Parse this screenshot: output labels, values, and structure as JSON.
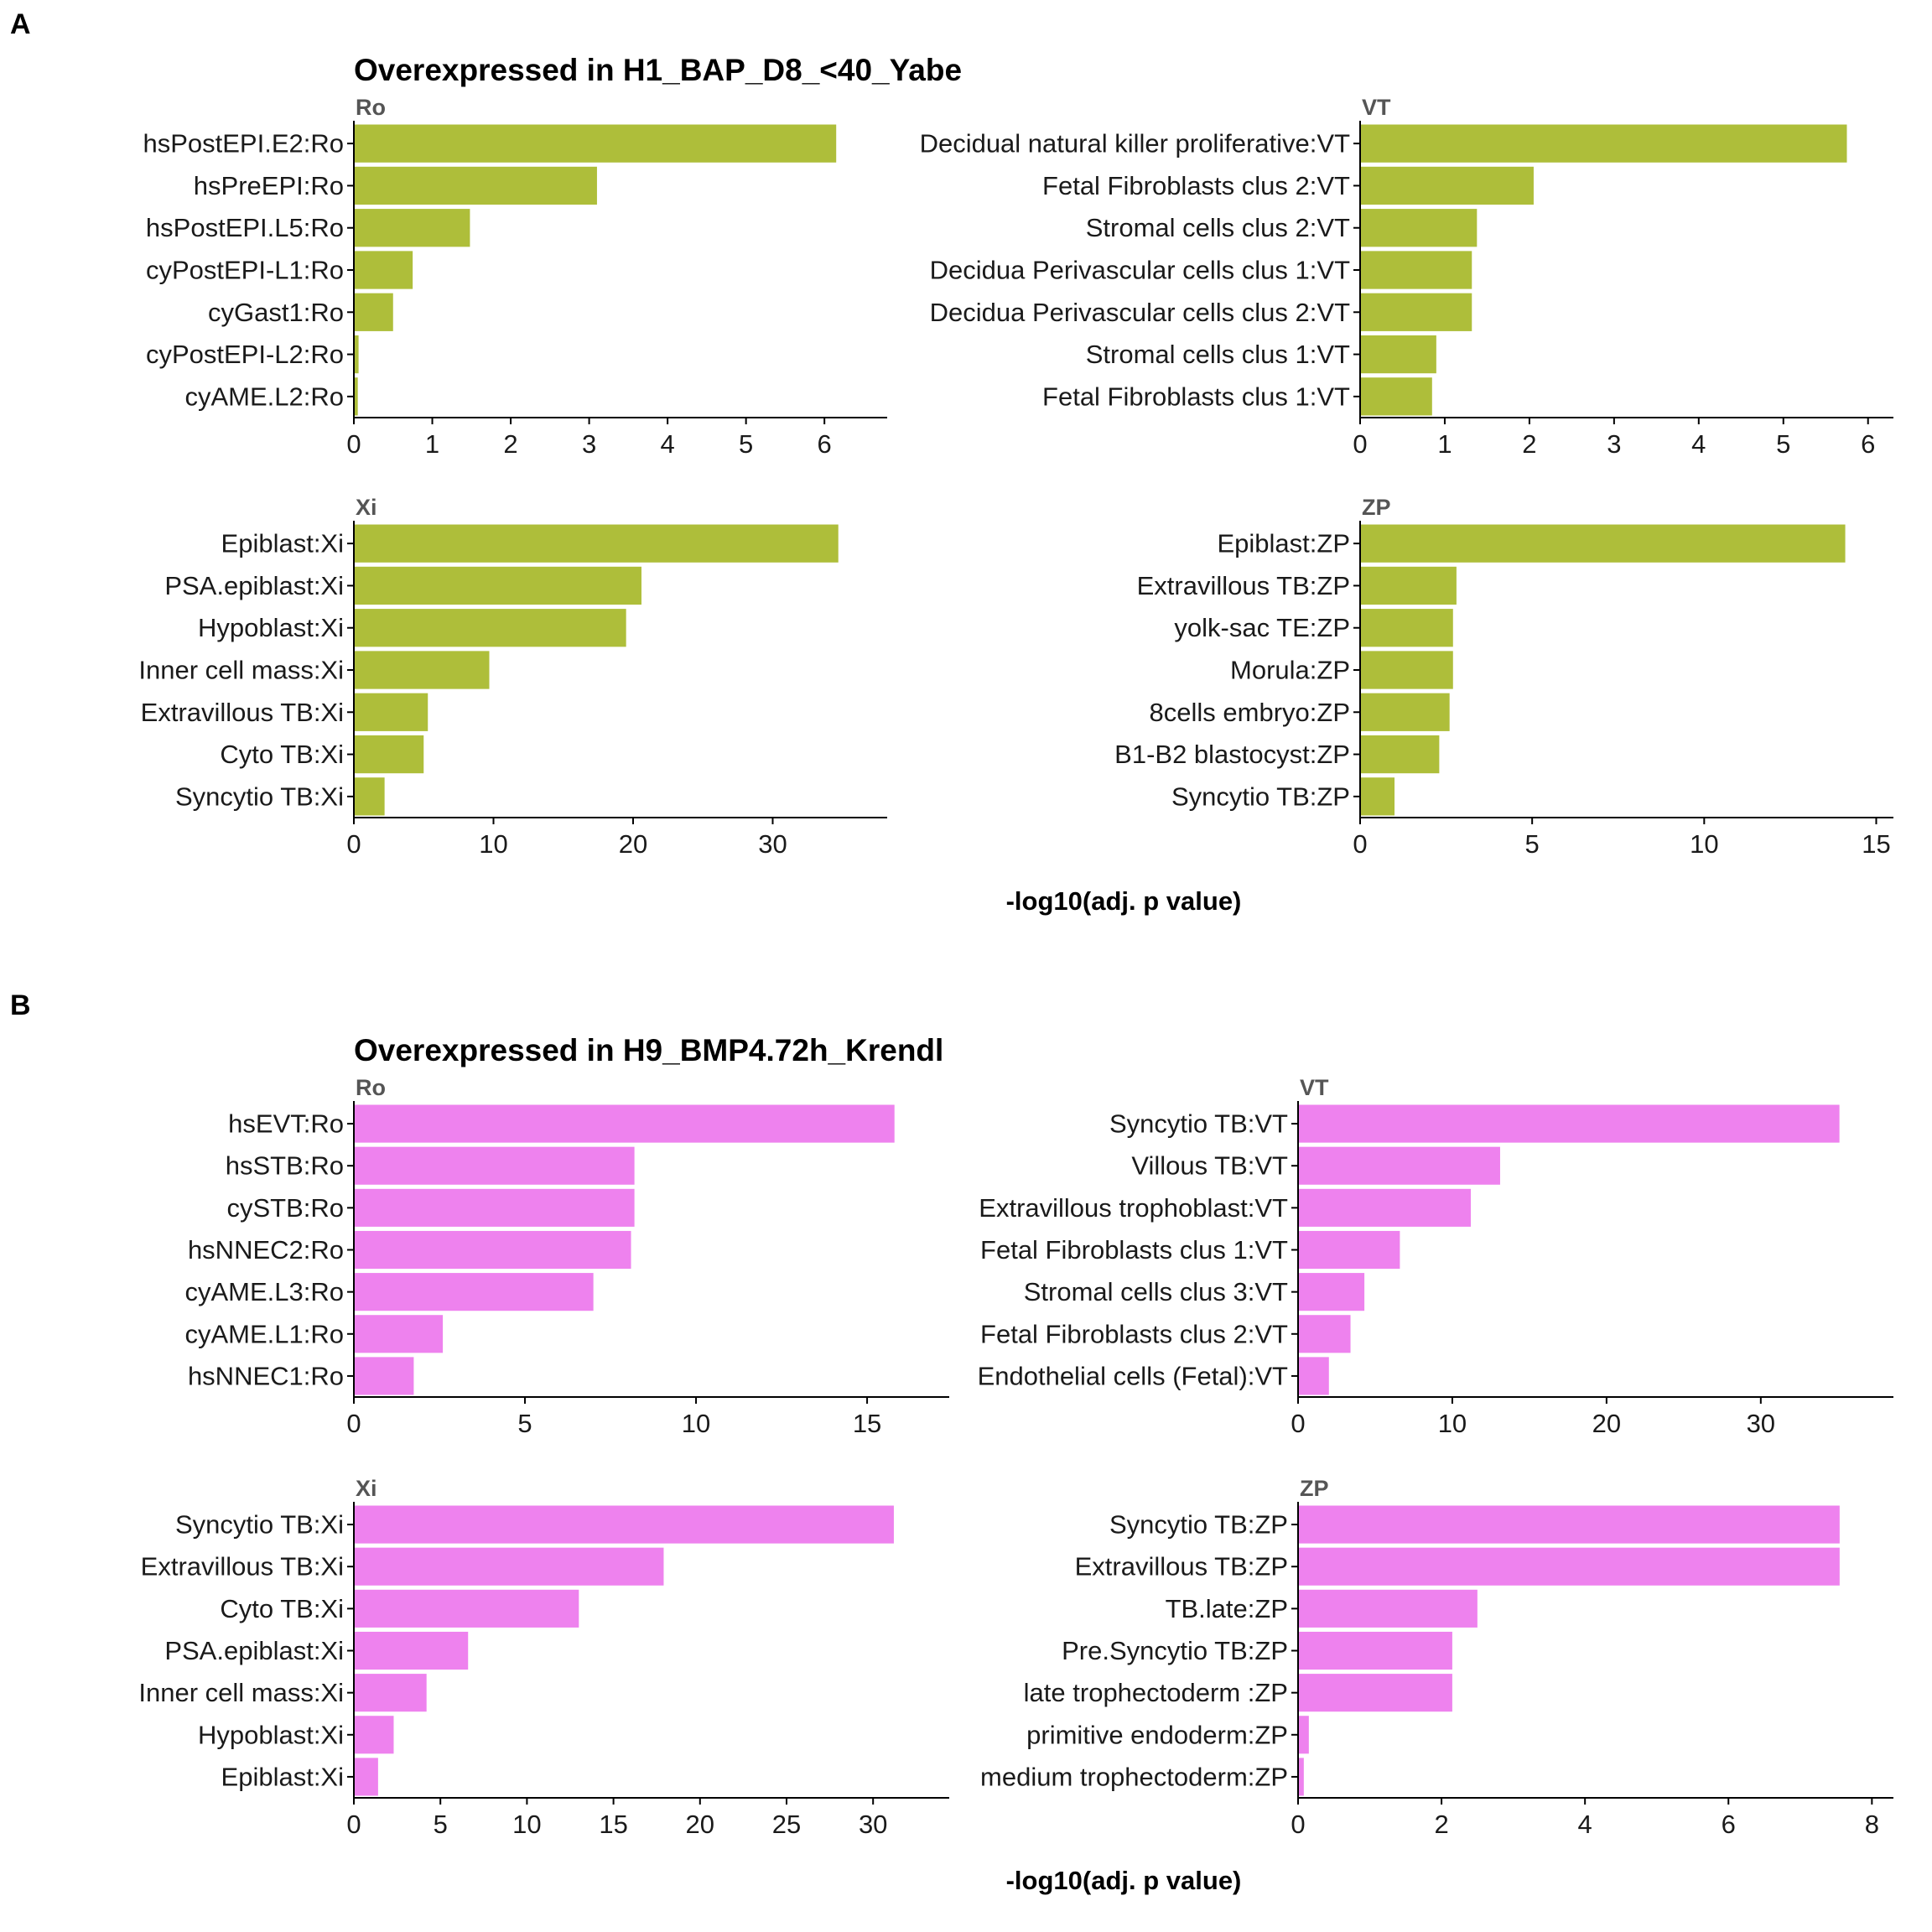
{
  "chart_data": [
    {
      "type": "bar",
      "panel": "A",
      "title": "Overexpressed in H1_BAP_D8_<40_Yabe",
      "xlabel": "-log10(adj. p value)",
      "color": "#aebe3a",
      "facets": [
        {
          "strip": "Ro",
          "categories": [
            "hsPostEPI.E2:Ro",
            "hsPreEPI:Ro",
            "hsPostEPI.L5:Ro",
            "cyPostEPI-L1:Ro",
            "cyGast1:Ro",
            "cyPostEPI-L2:Ro",
            "cyAME.L2:Ro"
          ],
          "values": [
            6.15,
            3.1,
            1.48,
            0.75,
            0.5,
            0.06,
            0.05
          ],
          "xlim": [
            0,
            6.8
          ],
          "ticks": [
            0,
            1,
            2,
            3,
            4,
            5,
            6
          ]
        },
        {
          "strip": "VT",
          "categories": [
            "Decidual natural killer proliferative:VT",
            "Fetal Fibroblasts clus 2:VT",
            "Stromal cells clus 2:VT",
            "Decidua Perivascular cells clus 1:VT",
            "Decidua Perivascular cells clus 2:VT",
            "Stromal cells clus 1:VT",
            "Fetal Fibroblasts clus 1:VT"
          ],
          "values": [
            5.75,
            2.05,
            1.38,
            1.32,
            1.32,
            0.9,
            0.85
          ],
          "xlim": [
            0,
            6.3
          ],
          "ticks": [
            0,
            1,
            2,
            3,
            4,
            5,
            6
          ]
        },
        {
          "strip": "Xi",
          "categories": [
            "Epiblast:Xi",
            "PSA.epiblast:Xi",
            "Hypoblast:Xi",
            "Inner cell mass:Xi",
            "Extravillous TB:Xi",
            "Cyto TB:Xi",
            "Syncytio TB:Xi"
          ],
          "values": [
            34.7,
            20.6,
            19.5,
            9.7,
            5.3,
            5.0,
            2.2
          ],
          "xlim": [
            0,
            38.2
          ],
          "ticks": [
            0,
            10,
            20,
            30
          ]
        },
        {
          "strip": "ZP",
          "categories": [
            "Epiblast:ZP",
            "Extravillous TB:ZP",
            "yolk-sac TE:ZP",
            "Morula:ZP",
            "8cells embryo:ZP",
            "B1-B2 blastocyst:ZP",
            "Syncytio TB:ZP"
          ],
          "values": [
            14.1,
            2.8,
            2.7,
            2.7,
            2.6,
            2.3,
            1.0
          ],
          "xlim": [
            0,
            15.5
          ],
          "ticks": [
            0,
            5,
            10,
            15
          ]
        }
      ]
    },
    {
      "type": "bar",
      "panel": "B",
      "title": "Overexpressed in H9_BMP4.72h_Krendl",
      "xlabel": "-log10(adj. p value)",
      "color": "#ee82ee",
      "facets": [
        {
          "strip": "Ro",
          "categories": [
            "hsEVT:Ro",
            "hsSTB:Ro",
            "cySTB:Ro",
            "hsNNEC2:Ro",
            "cyAME.L3:Ro",
            "cyAME.L1:Ro",
            "hsNNEC1:Ro"
          ],
          "values": [
            15.8,
            8.2,
            8.2,
            8.1,
            7.0,
            2.6,
            1.75
          ],
          "xlim": [
            0,
            17.4
          ],
          "ticks": [
            0,
            5,
            10,
            15
          ]
        },
        {
          "strip": "VT",
          "categories": [
            "Syncytio TB:VT",
            "Villous TB:VT",
            "Extravillous trophoblast:VT",
            "Fetal Fibroblasts clus 1:VT",
            "Stromal cells clus 3:VT",
            "Fetal Fibroblasts clus 2:VT",
            "Endothelial cells (Fetal):VT"
          ],
          "values": [
            35.1,
            13.1,
            11.2,
            6.6,
            4.3,
            3.4,
            2.0
          ],
          "xlim": [
            0,
            38.6
          ],
          "ticks": [
            0,
            10,
            20,
            30
          ]
        },
        {
          "strip": "Xi",
          "categories": [
            "Syncytio TB:Xi",
            "Extravillous TB:Xi",
            "Cyto TB:Xi",
            "PSA.epiblast:Xi",
            "Inner cell mass:Xi",
            "Hypoblast:Xi",
            "Epiblast:Xi"
          ],
          "values": [
            31.2,
            17.9,
            13.0,
            6.6,
            4.2,
            2.3,
            1.4
          ],
          "xlim": [
            0,
            34.4
          ],
          "ticks": [
            0,
            5,
            10,
            15,
            20,
            25,
            30
          ]
        },
        {
          "strip": "ZP",
          "categories": [
            "Syncytio TB:ZP",
            "Extravillous TB:ZP",
            "TB.late:ZP",
            "Pre.Syncytio TB:ZP",
            "late trophectoderm :ZP",
            "primitive endoderm:ZP",
            "medium trophectoderm:ZP"
          ],
          "values": [
            7.55,
            7.55,
            2.5,
            2.15,
            2.15,
            0.15,
            0.08
          ],
          "xlim": [
            0,
            8.3
          ],
          "ticks": [
            0,
            2,
            4,
            6,
            8
          ]
        }
      ]
    }
  ]
}
